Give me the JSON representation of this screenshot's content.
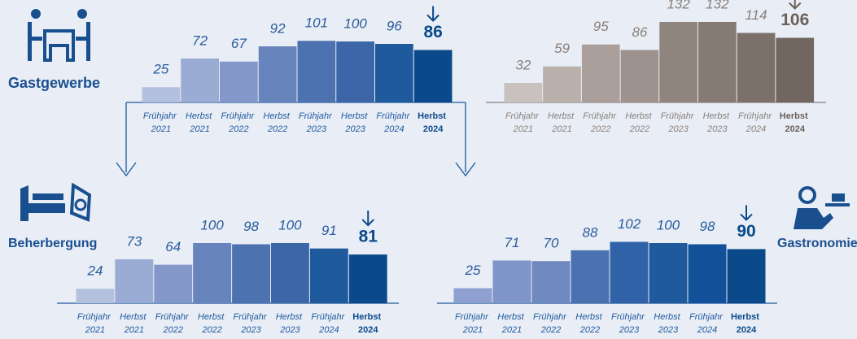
{
  "chart_data": [
    {
      "type": "bar",
      "title": "Gastgewerbe",
      "categories": [
        "Frühjahr 2021",
        "Herbst 2021",
        "Frühjahr 2022",
        "Herbst 2022",
        "Frühjahr 2023",
        "Herbst 2023",
        "Frühjahr 2024",
        "Herbst 2024"
      ],
      "values": [
        25,
        72,
        67,
        92,
        101,
        100,
        96,
        86
      ],
      "colors": [
        "#b3c0de",
        "#9aacd4",
        "#8398c8",
        "#6784bc",
        "#4d72b0",
        "#3c66a8",
        "#1f5a9d",
        "#0b4a8a"
      ]
    },
    {
      "type": "bar",
      "categories": [
        "Frühjahr 2021",
        "Herbst 2021",
        "Frühjahr 2022",
        "Herbst 2022",
        "Frühjahr 2023",
        "Herbst 2023",
        "Frühjahr 2024",
        "Herbst 2024"
      ],
      "values": [
        32,
        59,
        95,
        86,
        132,
        132,
        114,
        106
      ],
      "colors": [
        "#c9c1bd",
        "#b9afab",
        "#aa9f9a",
        "#9d928d",
        "#90847e",
        "#867a74",
        "#7c706a",
        "#716660"
      ]
    },
    {
      "type": "bar",
      "title": "Beherbergung",
      "categories": [
        "Frühjahr 2021",
        "Herbst 2021",
        "Frühjahr 2022",
        "Herbst 2022",
        "Frühjahr 2023",
        "Herbst 2023",
        "Frühjahr 2024",
        "Herbst 2024"
      ],
      "values": [
        24,
        73,
        64,
        100,
        98,
        100,
        91,
        81
      ],
      "colors": [
        "#b3c0de",
        "#9aacd4",
        "#8398c8",
        "#6784bc",
        "#4d72b0",
        "#3c66a8",
        "#1f5a9d",
        "#0b4a8a"
      ]
    },
    {
      "type": "bar",
      "title": "Gastronomie",
      "categories": [
        "Frühjahr 2021",
        "Herbst 2021",
        "Frühjahr 2022",
        "Herbst 2022",
        "Frühjahr 2023",
        "Herbst 2023",
        "Frühjahr 2024",
        "Herbst 2024"
      ],
      "values": [
        25,
        71,
        70,
        88,
        102,
        100,
        98,
        90
      ],
      "colors": [
        "#8da0cf",
        "#7f94c8",
        "#7089c0",
        "#4b72b0",
        "#2f62a6",
        "#1f5a9d",
        "#12519a",
        "#0b4a8a"
      ]
    }
  ]
}
